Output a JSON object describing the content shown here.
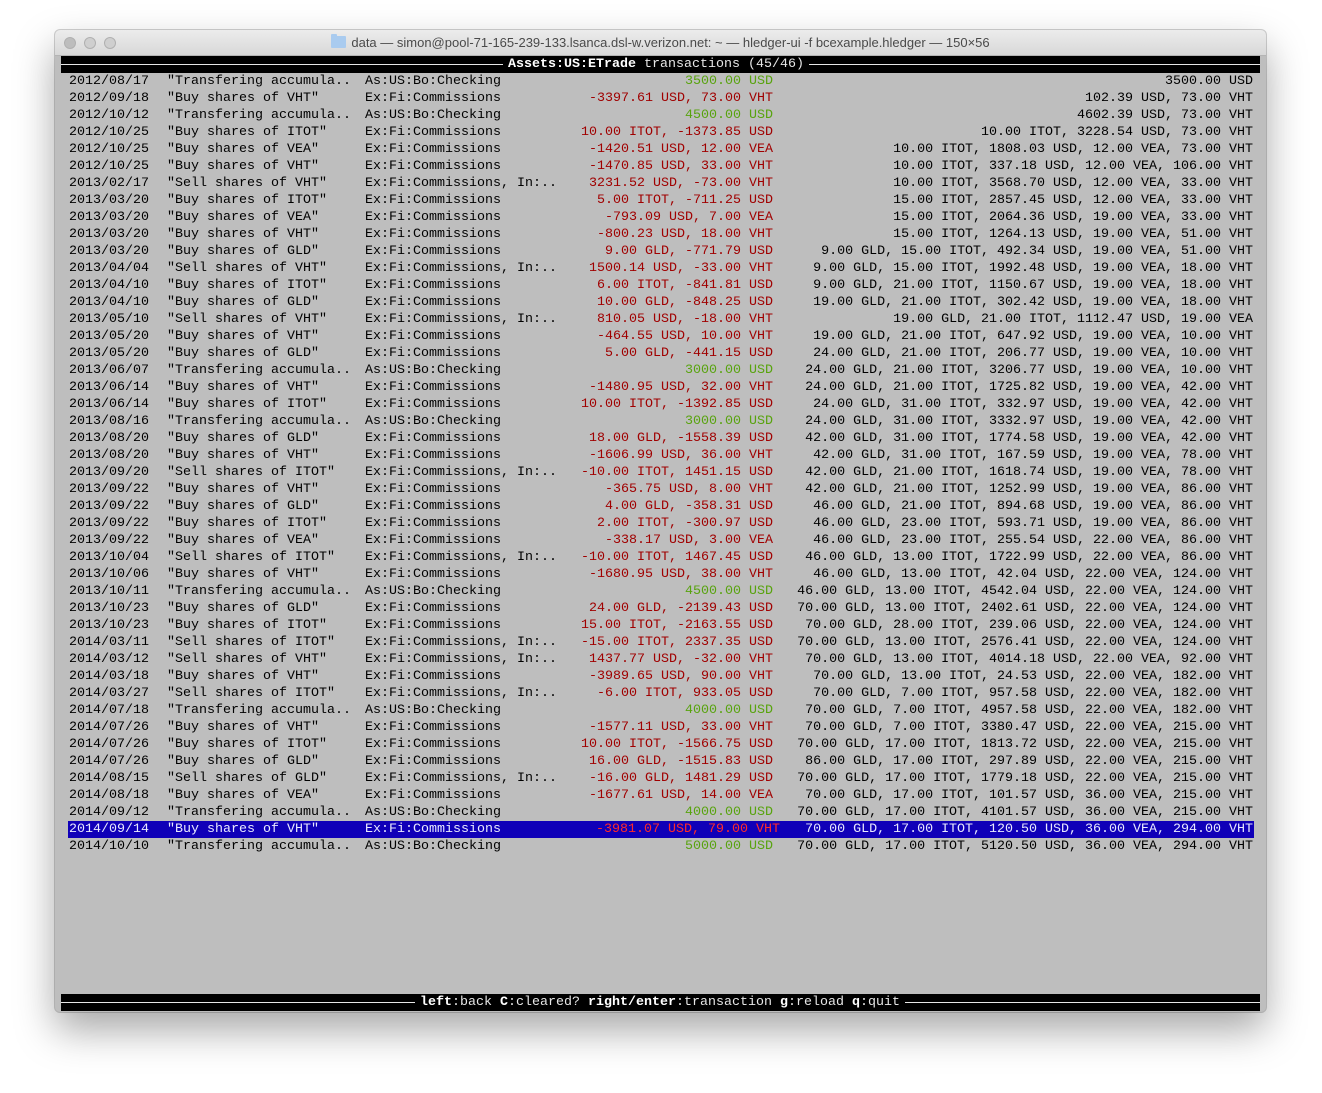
{
  "window": {
    "title": "data — simon@pool-71-165-239-133.lsanca.dsl-w.verizon.net: ~ — hledger-ui -f bcexample.hledger — 150×56",
    "icon": "folder-icon"
  },
  "header": {
    "account": "Assets:US:ETrade",
    "suffix": " transactions (45/46)"
  },
  "colors": {
    "terminal_bg": "#bebebe",
    "negative_amount": "#a00000",
    "positive_amount": "#58a30e",
    "selection_bg": "#1000b8"
  },
  "selected_index": 44,
  "rows": [
    {
      "date": "2012/08/17",
      "desc": "\"Transfering accumula..",
      "account": "As:US:Bo:Checking",
      "amount": "3500.00 USD",
      "balance": "3500.00 USD",
      "kind": "in"
    },
    {
      "date": "2012/09/18",
      "desc": "\"Buy shares of VHT\"",
      "account": "Ex:Fi:Commissions",
      "amount": "-3397.61 USD, 73.00 VHT",
      "balance": "102.39 USD, 73.00 VHT",
      "kind": "out"
    },
    {
      "date": "2012/10/12",
      "desc": "\"Transfering accumula..",
      "account": "As:US:Bo:Checking",
      "amount": "4500.00 USD",
      "balance": "4602.39 USD, 73.00 VHT",
      "kind": "in"
    },
    {
      "date": "2012/10/25",
      "desc": "\"Buy shares of ITOT\"",
      "account": "Ex:Fi:Commissions",
      "amount": "10.00 ITOT, -1373.85 USD",
      "balance": "10.00 ITOT, 3228.54 USD, 73.00 VHT",
      "kind": "out"
    },
    {
      "date": "2012/10/25",
      "desc": "\"Buy shares of VEA\"",
      "account": "Ex:Fi:Commissions",
      "amount": "-1420.51 USD, 12.00 VEA",
      "balance": "10.00 ITOT, 1808.03 USD, 12.00 VEA, 73.00 VHT",
      "kind": "out"
    },
    {
      "date": "2012/10/25",
      "desc": "\"Buy shares of VHT\"",
      "account": "Ex:Fi:Commissions",
      "amount": "-1470.85 USD, 33.00 VHT",
      "balance": "10.00 ITOT, 337.18 USD, 12.00 VEA, 106.00 VHT",
      "kind": "out"
    },
    {
      "date": "2013/02/17",
      "desc": "\"Sell shares of VHT\"",
      "account": "Ex:Fi:Commissions, In:..",
      "amount": "3231.52 USD, -73.00 VHT",
      "balance": "10.00 ITOT, 3568.70 USD, 12.00 VEA, 33.00 VHT",
      "kind": "out"
    },
    {
      "date": "2013/03/20",
      "desc": "\"Buy shares of ITOT\"",
      "account": "Ex:Fi:Commissions",
      "amount": "5.00 ITOT, -711.25 USD",
      "balance": "15.00 ITOT, 2857.45 USD, 12.00 VEA, 33.00 VHT",
      "kind": "out"
    },
    {
      "date": "2013/03/20",
      "desc": "\"Buy shares of VEA\"",
      "account": "Ex:Fi:Commissions",
      "amount": "-793.09 USD, 7.00 VEA",
      "balance": "15.00 ITOT, 2064.36 USD, 19.00 VEA, 33.00 VHT",
      "kind": "out"
    },
    {
      "date": "2013/03/20",
      "desc": "\"Buy shares of VHT\"",
      "account": "Ex:Fi:Commissions",
      "amount": "-800.23 USD, 18.00 VHT",
      "balance": "15.00 ITOT, 1264.13 USD, 19.00 VEA, 51.00 VHT",
      "kind": "out"
    },
    {
      "date": "2013/03/20",
      "desc": "\"Buy shares of GLD\"",
      "account": "Ex:Fi:Commissions",
      "amount": "9.00 GLD, -771.79 USD",
      "balance": "9.00 GLD, 15.00 ITOT, 492.34 USD, 19.00 VEA, 51.00 VHT",
      "kind": "out"
    },
    {
      "date": "2013/04/04",
      "desc": "\"Sell shares of VHT\"",
      "account": "Ex:Fi:Commissions, In:..",
      "amount": "1500.14 USD, -33.00 VHT",
      "balance": "9.00 GLD, 15.00 ITOT, 1992.48 USD, 19.00 VEA, 18.00 VHT",
      "kind": "out"
    },
    {
      "date": "2013/04/10",
      "desc": "\"Buy shares of ITOT\"",
      "account": "Ex:Fi:Commissions",
      "amount": "6.00 ITOT, -841.81 USD",
      "balance": "9.00 GLD, 21.00 ITOT, 1150.67 USD, 19.00 VEA, 18.00 VHT",
      "kind": "out"
    },
    {
      "date": "2013/04/10",
      "desc": "\"Buy shares of GLD\"",
      "account": "Ex:Fi:Commissions",
      "amount": "10.00 GLD, -848.25 USD",
      "balance": "19.00 GLD, 21.00 ITOT, 302.42 USD, 19.00 VEA, 18.00 VHT",
      "kind": "out"
    },
    {
      "date": "2013/05/10",
      "desc": "\"Sell shares of VHT\"",
      "account": "Ex:Fi:Commissions, In:..",
      "amount": "810.05 USD, -18.00 VHT",
      "balance": "19.00 GLD, 21.00 ITOT, 1112.47 USD, 19.00 VEA",
      "kind": "out"
    },
    {
      "date": "2013/05/20",
      "desc": "\"Buy shares of VHT\"",
      "account": "Ex:Fi:Commissions",
      "amount": "-464.55 USD, 10.00 VHT",
      "balance": "19.00 GLD, 21.00 ITOT, 647.92 USD, 19.00 VEA, 10.00 VHT",
      "kind": "out"
    },
    {
      "date": "2013/05/20",
      "desc": "\"Buy shares of GLD\"",
      "account": "Ex:Fi:Commissions",
      "amount": "5.00 GLD, -441.15 USD",
      "balance": "24.00 GLD, 21.00 ITOT, 206.77 USD, 19.00 VEA, 10.00 VHT",
      "kind": "out"
    },
    {
      "date": "2013/06/07",
      "desc": "\"Transfering accumula..",
      "account": "As:US:Bo:Checking",
      "amount": "3000.00 USD",
      "balance": "24.00 GLD, 21.00 ITOT, 3206.77 USD, 19.00 VEA, 10.00 VHT",
      "kind": "in"
    },
    {
      "date": "2013/06/14",
      "desc": "\"Buy shares of VHT\"",
      "account": "Ex:Fi:Commissions",
      "amount": "-1480.95 USD, 32.00 VHT",
      "balance": "24.00 GLD, 21.00 ITOT, 1725.82 USD, 19.00 VEA, 42.00 VHT",
      "kind": "out"
    },
    {
      "date": "2013/06/14",
      "desc": "\"Buy shares of ITOT\"",
      "account": "Ex:Fi:Commissions",
      "amount": "10.00 ITOT, -1392.85 USD",
      "balance": "24.00 GLD, 31.00 ITOT, 332.97 USD, 19.00 VEA, 42.00 VHT",
      "kind": "out"
    },
    {
      "date": "2013/08/16",
      "desc": "\"Transfering accumula..",
      "account": "As:US:Bo:Checking",
      "amount": "3000.00 USD",
      "balance": "24.00 GLD, 31.00 ITOT, 3332.97 USD, 19.00 VEA, 42.00 VHT",
      "kind": "in"
    },
    {
      "date": "2013/08/20",
      "desc": "\"Buy shares of GLD\"",
      "account": "Ex:Fi:Commissions",
      "amount": "18.00 GLD, -1558.39 USD",
      "balance": "42.00 GLD, 31.00 ITOT, 1774.58 USD, 19.00 VEA, 42.00 VHT",
      "kind": "out"
    },
    {
      "date": "2013/08/20",
      "desc": "\"Buy shares of VHT\"",
      "account": "Ex:Fi:Commissions",
      "amount": "-1606.99 USD, 36.00 VHT",
      "balance": "42.00 GLD, 31.00 ITOT, 167.59 USD, 19.00 VEA, 78.00 VHT",
      "kind": "out"
    },
    {
      "date": "2013/09/20",
      "desc": "\"Sell shares of ITOT\"",
      "account": "Ex:Fi:Commissions, In:..",
      "amount": "-10.00 ITOT, 1451.15 USD",
      "balance": "42.00 GLD, 21.00 ITOT, 1618.74 USD, 19.00 VEA, 78.00 VHT",
      "kind": "out"
    },
    {
      "date": "2013/09/22",
      "desc": "\"Buy shares of VHT\"",
      "account": "Ex:Fi:Commissions",
      "amount": "-365.75 USD, 8.00 VHT",
      "balance": "42.00 GLD, 21.00 ITOT, 1252.99 USD, 19.00 VEA, 86.00 VHT",
      "kind": "out"
    },
    {
      "date": "2013/09/22",
      "desc": "\"Buy shares of GLD\"",
      "account": "Ex:Fi:Commissions",
      "amount": "4.00 GLD, -358.31 USD",
      "balance": "46.00 GLD, 21.00 ITOT, 894.68 USD, 19.00 VEA, 86.00 VHT",
      "kind": "out"
    },
    {
      "date": "2013/09/22",
      "desc": "\"Buy shares of ITOT\"",
      "account": "Ex:Fi:Commissions",
      "amount": "2.00 ITOT, -300.97 USD",
      "balance": "46.00 GLD, 23.00 ITOT, 593.71 USD, 19.00 VEA, 86.00 VHT",
      "kind": "out"
    },
    {
      "date": "2013/09/22",
      "desc": "\"Buy shares of VEA\"",
      "account": "Ex:Fi:Commissions",
      "amount": "-338.17 USD, 3.00 VEA",
      "balance": "46.00 GLD, 23.00 ITOT, 255.54 USD, 22.00 VEA, 86.00 VHT",
      "kind": "out"
    },
    {
      "date": "2013/10/04",
      "desc": "\"Sell shares of ITOT\"",
      "account": "Ex:Fi:Commissions, In:..",
      "amount": "-10.00 ITOT, 1467.45 USD",
      "balance": "46.00 GLD, 13.00 ITOT, 1722.99 USD, 22.00 VEA, 86.00 VHT",
      "kind": "out"
    },
    {
      "date": "2013/10/06",
      "desc": "\"Buy shares of VHT\"",
      "account": "Ex:Fi:Commissions",
      "amount": "-1680.95 USD, 38.00 VHT",
      "balance": "46.00 GLD, 13.00 ITOT, 42.04 USD, 22.00 VEA, 124.00 VHT",
      "kind": "out"
    },
    {
      "date": "2013/10/11",
      "desc": "\"Transfering accumula..",
      "account": "As:US:Bo:Checking",
      "amount": "4500.00 USD",
      "balance": "46.00 GLD, 13.00 ITOT, 4542.04 USD, 22.00 VEA, 124.00 VHT",
      "kind": "in"
    },
    {
      "date": "2013/10/23",
      "desc": "\"Buy shares of GLD\"",
      "account": "Ex:Fi:Commissions",
      "amount": "24.00 GLD, -2139.43 USD",
      "balance": "70.00 GLD, 13.00 ITOT, 2402.61 USD, 22.00 VEA, 124.00 VHT",
      "kind": "out"
    },
    {
      "date": "2013/10/23",
      "desc": "\"Buy shares of ITOT\"",
      "account": "Ex:Fi:Commissions",
      "amount": "15.00 ITOT, -2163.55 USD",
      "balance": "70.00 GLD, 28.00 ITOT, 239.06 USD, 22.00 VEA, 124.00 VHT",
      "kind": "out"
    },
    {
      "date": "2014/03/11",
      "desc": "\"Sell shares of ITOT\"",
      "account": "Ex:Fi:Commissions, In:..",
      "amount": "-15.00 ITOT, 2337.35 USD",
      "balance": "70.00 GLD, 13.00 ITOT, 2576.41 USD, 22.00 VEA, 124.00 VHT",
      "kind": "out"
    },
    {
      "date": "2014/03/12",
      "desc": "\"Sell shares of VHT\"",
      "account": "Ex:Fi:Commissions, In:..",
      "amount": "1437.77 USD, -32.00 VHT",
      "balance": "70.00 GLD, 13.00 ITOT, 4014.18 USD, 22.00 VEA, 92.00 VHT",
      "kind": "out"
    },
    {
      "date": "2014/03/18",
      "desc": "\"Buy shares of VHT\"",
      "account": "Ex:Fi:Commissions",
      "amount": "-3989.65 USD, 90.00 VHT",
      "balance": "70.00 GLD, 13.00 ITOT, 24.53 USD, 22.00 VEA, 182.00 VHT",
      "kind": "out"
    },
    {
      "date": "2014/03/27",
      "desc": "\"Sell shares of ITOT\"",
      "account": "Ex:Fi:Commissions, In:..",
      "amount": "-6.00 ITOT, 933.05 USD",
      "balance": "70.00 GLD, 7.00 ITOT, 957.58 USD, 22.00 VEA, 182.00 VHT",
      "kind": "out"
    },
    {
      "date": "2014/07/18",
      "desc": "\"Transfering accumula..",
      "account": "As:US:Bo:Checking",
      "amount": "4000.00 USD",
      "balance": "70.00 GLD, 7.00 ITOT, 4957.58 USD, 22.00 VEA, 182.00 VHT",
      "kind": "in"
    },
    {
      "date": "2014/07/26",
      "desc": "\"Buy shares of VHT\"",
      "account": "Ex:Fi:Commissions",
      "amount": "-1577.11 USD, 33.00 VHT",
      "balance": "70.00 GLD, 7.00 ITOT, 3380.47 USD, 22.00 VEA, 215.00 VHT",
      "kind": "out"
    },
    {
      "date": "2014/07/26",
      "desc": "\"Buy shares of ITOT\"",
      "account": "Ex:Fi:Commissions",
      "amount": "10.00 ITOT, -1566.75 USD",
      "balance": "70.00 GLD, 17.00 ITOT, 1813.72 USD, 22.00 VEA, 215.00 VHT",
      "kind": "out"
    },
    {
      "date": "2014/07/26",
      "desc": "\"Buy shares of GLD\"",
      "account": "Ex:Fi:Commissions",
      "amount": "16.00 GLD, -1515.83 USD",
      "balance": "86.00 GLD, 17.00 ITOT, 297.89 USD, 22.00 VEA, 215.00 VHT",
      "kind": "out"
    },
    {
      "date": "2014/08/15",
      "desc": "\"Sell shares of GLD\"",
      "account": "Ex:Fi:Commissions, In:..",
      "amount": "-16.00 GLD, 1481.29 USD",
      "balance": "70.00 GLD, 17.00 ITOT, 1779.18 USD, 22.00 VEA, 215.00 VHT",
      "kind": "out"
    },
    {
      "date": "2014/08/18",
      "desc": "\"Buy shares of VEA\"",
      "account": "Ex:Fi:Commissions",
      "amount": "-1677.61 USD, 14.00 VEA",
      "balance": "70.00 GLD, 17.00 ITOT, 101.57 USD, 36.00 VEA, 215.00 VHT",
      "kind": "out"
    },
    {
      "date": "2014/09/12",
      "desc": "\"Transfering accumula..",
      "account": "As:US:Bo:Checking",
      "amount": "4000.00 USD",
      "balance": "70.00 GLD, 17.00 ITOT, 4101.57 USD, 36.00 VEA, 215.00 VHT",
      "kind": "in"
    },
    {
      "date": "2014/09/14",
      "desc": "\"Buy shares of VHT\"",
      "account": "Ex:Fi:Commissions",
      "amount": "-3981.07 USD, 79.00 VHT",
      "balance": "70.00 GLD, 17.00 ITOT, 120.50 USD, 36.00 VEA, 294.00 VHT",
      "kind": "out"
    },
    {
      "date": "2014/10/10",
      "desc": "\"Transfering accumula..",
      "account": "As:US:Bo:Checking",
      "amount": "5000.00 USD",
      "balance": "70.00 GLD, 17.00 ITOT, 5120.50 USD, 36.00 VEA, 294.00 VHT",
      "kind": "in"
    }
  ],
  "footer": {
    "keys": [
      {
        "key": "left",
        "action": "back"
      },
      {
        "key": "C",
        "action": "cleared?"
      },
      {
        "key": "right/enter",
        "action": "transaction"
      },
      {
        "key": "g",
        "action": "reload"
      },
      {
        "key": "q",
        "action": "quit"
      }
    ]
  }
}
